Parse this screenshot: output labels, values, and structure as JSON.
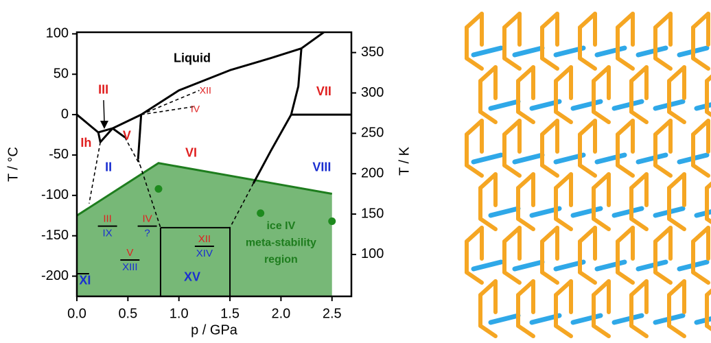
{
  "chart_data": {
    "type": "phase-diagram",
    "xlabel": "p / GPa",
    "ylabel": "T / °C",
    "y2label": "T / K",
    "xlim": [
      0,
      2.69
    ],
    "ylim": [
      -225,
      102
    ],
    "y2lim": [
      48.15,
      375.15
    ],
    "xticks": [
      {
        "value": 0,
        "label": "0.0"
      },
      0.5,
      {
        "value": 1,
        "label": "1.0"
      },
      1.5,
      {
        "value": 2,
        "label": "2.0"
      },
      2.5
    ],
    "yticks": [
      100,
      50,
      0,
      -50,
      -100,
      -150,
      -200
    ],
    "y2ticks": [
      100,
      150,
      200,
      250,
      300,
      350
    ],
    "region": {
      "color": "#77b877",
      "edge": "#1e7d1e",
      "x": [
        0,
        0.8,
        2.5,
        2.5,
        0
      ],
      "y": [
        -125,
        -60,
        -98,
        -225,
        -225
      ]
    },
    "boundaries": [
      {
        "x": [
          0,
          0.21
        ],
        "y": [
          0,
          -22
        ],
        "style": "solid"
      },
      {
        "x": [
          0.21,
          0.35,
          0.63
        ],
        "y": [
          -22,
          -17,
          0
        ],
        "style": "solid"
      },
      {
        "x": [
          0.63,
          1.0,
          1.5,
          1.9,
          2.2
        ],
        "y": [
          0,
          30,
          55,
          70,
          82
        ],
        "style": "solid"
      },
      {
        "x": [
          2.2,
          2.42
        ],
        "y": [
          82,
          102
        ],
        "style": "solid"
      },
      {
        "x": [
          2.2,
          2.17,
          2.1
        ],
        "y": [
          82,
          35,
          0
        ],
        "style": "solid"
      },
      {
        "x": [
          2.1,
          2.69
        ],
        "y": [
          0,
          0
        ],
        "style": "solid"
      },
      {
        "x": [
          2.1,
          1.9,
          1.73
        ],
        "y": [
          0,
          -45,
          -85
        ],
        "style": "solid"
      },
      {
        "x": [
          0.21,
          0.23,
          0.35
        ],
        "y": [
          -22,
          -34,
          -17
        ],
        "style": "solid"
      },
      {
        "x": [
          0.35,
          0.47
        ],
        "y": [
          -17,
          -28
        ],
        "style": "solid"
      },
      {
        "x": [
          0.63,
          0.6
        ],
        "y": [
          0,
          -55
        ],
        "style": "solid"
      },
      {
        "x": [
          0.23,
          0.12
        ],
        "y": [
          -34,
          -110
        ],
        "style": "dashed"
      },
      {
        "x": [
          0.6,
          0.82
        ],
        "y": [
          -55,
          -140
        ],
        "style": "dashed"
      },
      {
        "x": [
          1.73,
          1.5
        ],
        "y": [
          -85,
          -140
        ],
        "style": "dashed"
      },
      {
        "x": [
          0.63,
          1.2
        ],
        "y": [
          0,
          30
        ],
        "style": "dashed"
      },
      {
        "x": [
          0.63,
          1.15
        ],
        "y": [
          0,
          10
        ],
        "style": "dashed"
      },
      {
        "x": [
          0.47,
          0.62
        ],
        "y": [
          -28,
          -63
        ],
        "style": "dashed"
      }
    ],
    "green_lines": [
      {
        "x": [
          0.82,
          1.5
        ],
        "y": [
          -140,
          -140
        ]
      },
      {
        "x": [
          0.82,
          0.82
        ],
        "y": [
          -140,
          -225
        ]
      },
      {
        "x": [
          1.5,
          1.5
        ],
        "y": [
          -140,
          -225
        ]
      },
      {
        "x": [
          0,
          0.12
        ],
        "y": [
          -197,
          -197
        ]
      }
    ],
    "points": {
      "color": "#1e8a1e",
      "x": [
        0.8,
        1.8,
        2.5
      ],
      "y": [
        -92,
        -122,
        -132
      ]
    },
    "annotations": [
      {
        "text": "Liquid",
        "x": 1.13,
        "y": 69,
        "color": "#000000",
        "size": 18
      },
      {
        "text": "III",
        "x": 0.26,
        "y": 30,
        "color": "#e02020",
        "size": 18
      },
      {
        "text": "Ih",
        "x": 0.09,
        "y": -36,
        "color": "#e02020",
        "size": 18
      },
      {
        "text": "V",
        "x": 0.49,
        "y": -27,
        "color": "#e02020",
        "size": 18
      },
      {
        "text": "II",
        "x": 0.31,
        "y": -66,
        "color": "#1a2fd0",
        "size": 18
      },
      {
        "text": "VI",
        "x": 1.12,
        "y": -48,
        "color": "#e02020",
        "size": 18
      },
      {
        "text": "VII",
        "x": 2.42,
        "y": 28,
        "color": "#e02020",
        "size": 18
      },
      {
        "text": "VIII",
        "x": 2.4,
        "y": -66,
        "color": "#1a2fd0",
        "size": 18
      },
      {
        "text": "XI",
        "x": 0.08,
        "y": -206,
        "color": "#1a2fd0",
        "size": 18
      },
      {
        "text": "XV",
        "x": 1.13,
        "y": -202,
        "color": "#1a2fd0",
        "size": 18
      },
      {
        "text": "XII",
        "x": 1.26,
        "y": 29,
        "color": "#e02020",
        "size": 14,
        "light": true
      },
      {
        "text": "IV",
        "x": 1.16,
        "y": 6,
        "color": "#e02020",
        "size": 14,
        "light": true
      },
      {
        "text": "ice IV",
        "x": 2.0,
        "y": -138,
        "color": "#1e7d1e",
        "size": 16
      },
      {
        "text": "meta-stability",
        "x": 2.0,
        "y": -159,
        "color": "#1e7d1e",
        "size": 16
      },
      {
        "text": "region",
        "x": 2.0,
        "y": -180,
        "color": "#1e7d1e",
        "size": 16
      }
    ],
    "fractions": [
      {
        "top": "III",
        "bottom": "IX",
        "x": 0.3,
        "y": -138
      },
      {
        "top": "IV",
        "bottom": "?",
        "x": 0.69,
        "y": -138
      },
      {
        "top": "V",
        "bottom": "XIII",
        "x": 0.52,
        "y": -180
      },
      {
        "top": "XII",
        "bottom": "XIV",
        "x": 1.25,
        "y": -163
      }
    ]
  }
}
